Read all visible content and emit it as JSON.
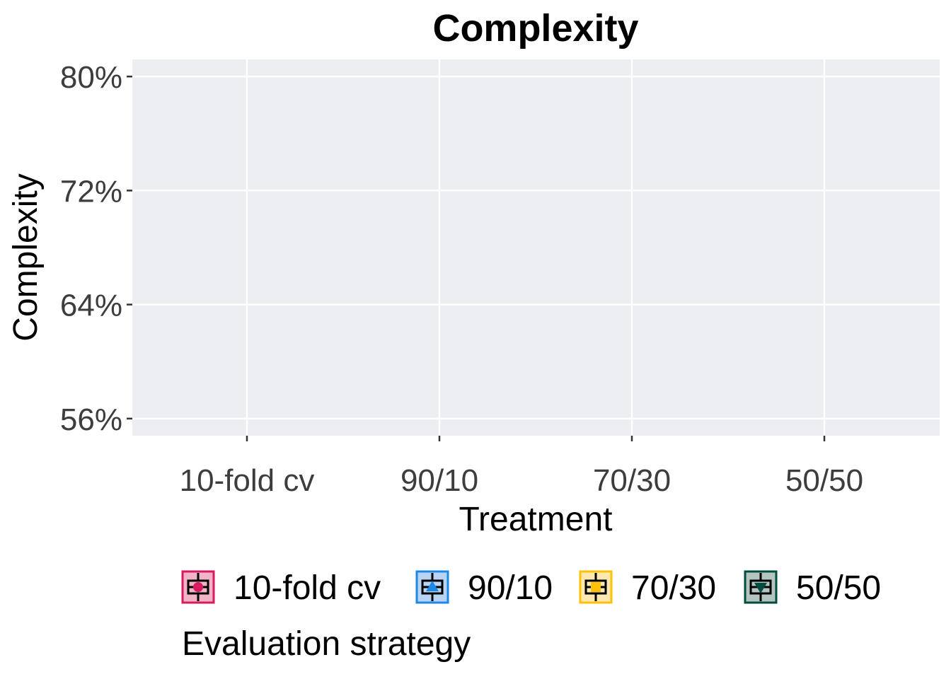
{
  "chart_data": {
    "type": "box",
    "title": "Complexity",
    "xlabel": "Treatment",
    "ylabel": "Complexity",
    "categories": [
      "10-fold cv",
      "90/10",
      "70/30",
      "50/50"
    ],
    "y_ticks": [
      56,
      64,
      72,
      80
    ],
    "y_tick_labels": [
      "56%",
      "64%",
      "72%",
      "80%"
    ],
    "ylim": [
      54.8,
      81.2
    ],
    "grid": true,
    "series": [],
    "legend": {
      "title": "Evaluation strategy",
      "placement": "bottom",
      "items": [
        {
          "label": "10-fold cv",
          "color": "#d81b60",
          "fill": "#f0b3c8",
          "marker": "circle"
        },
        {
          "label": "90/10",
          "color": "#1e88e5",
          "fill": "#b7d4f5",
          "marker": "triangle-up"
        },
        {
          "label": "70/30",
          "color": "#ffc107",
          "fill": "#fde9b0",
          "marker": "square"
        },
        {
          "label": "50/50",
          "color": "#004d40",
          "fill": "#b3c4c1",
          "marker": "triangle-down"
        }
      ]
    },
    "panel_color": "#edeef2",
    "grid_color": "#ffffff"
  }
}
